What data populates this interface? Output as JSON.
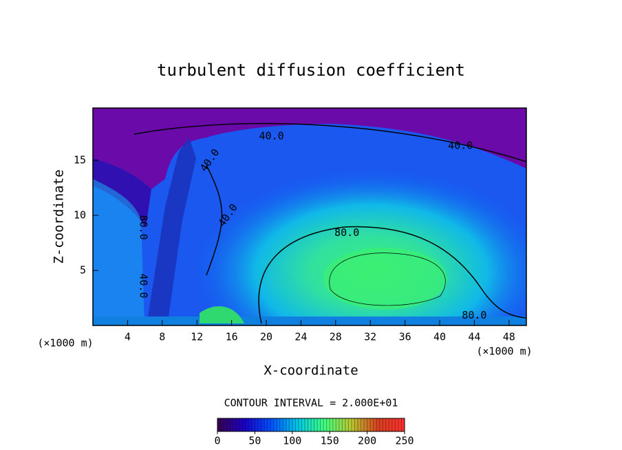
{
  "chart_data": {
    "type": "contour",
    "title": "turbulent diffusion coefficient",
    "x_label": "X-coordinate",
    "y_label": "Z-coordinate",
    "x_unit_label": "(×1000 m)",
    "y_unit_label": "(×1000 m)",
    "xlim": [
      0,
      50
    ],
    "ylim": [
      0,
      19.75
    ],
    "xticks": [
      4,
      8,
      12,
      16,
      20,
      24,
      28,
      32,
      36,
      40,
      44,
      48
    ],
    "yticks": [
      5,
      10,
      15
    ],
    "contour_labels": [
      {
        "x": 20.6,
        "y": 17.2,
        "label": "40.0"
      },
      {
        "x": 42.4,
        "y": 16.3,
        "label": "40.0"
      },
      {
        "x": 13.5,
        "y": 15.0,
        "label": "40.0"
      },
      {
        "x": 15.6,
        "y": 10.0,
        "label": "40.0"
      },
      {
        "x": 29.3,
        "y": 8.4,
        "label": "80.0"
      },
      {
        "x": 44.0,
        "y": 0.9,
        "label": "80.0"
      },
      {
        "x": 5.8,
        "y": 8.9,
        "label": "80.0"
      },
      {
        "x": 5.8,
        "y": 3.6,
        "label": "40.0"
      }
    ],
    "colorbar": {
      "title": "CONTOUR INTERVAL = 2.000E+01",
      "lim": [
        0,
        250
      ],
      "ticks": [
        0,
        50,
        100,
        150,
        200,
        250
      ],
      "colors": [
        "#3a0050",
        "#1a00c8",
        "#0050ff",
        "#00c8e8",
        "#40ff80",
        "#b8c830",
        "#d84020",
        "#ff3030"
      ]
    }
  }
}
